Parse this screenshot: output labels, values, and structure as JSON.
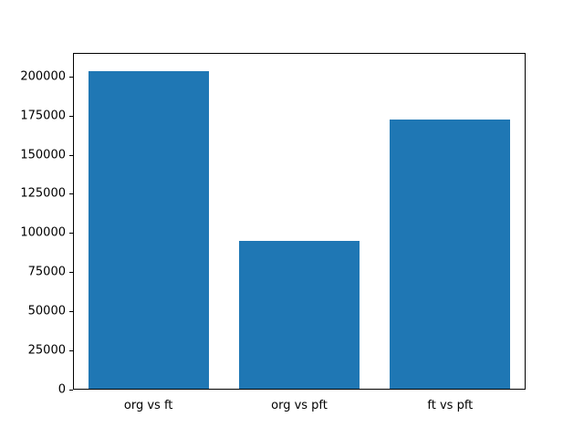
{
  "chart_data": {
    "type": "bar",
    "categories": [
      "org vs ft",
      "org vs pft",
      "ft vs pft"
    ],
    "values": [
      204000,
      95000,
      173000
    ],
    "title": "",
    "xlabel": "",
    "ylabel": "",
    "ylim": [
      0,
      215000
    ],
    "yticks": [
      0,
      25000,
      50000,
      75000,
      100000,
      125000,
      150000,
      175000,
      200000
    ],
    "bar_color": "#1f77b4",
    "bar_width_fraction": 0.8,
    "grid": false,
    "legend": null,
    "background_color": "#ffffff",
    "axis_color": "#000000"
  }
}
